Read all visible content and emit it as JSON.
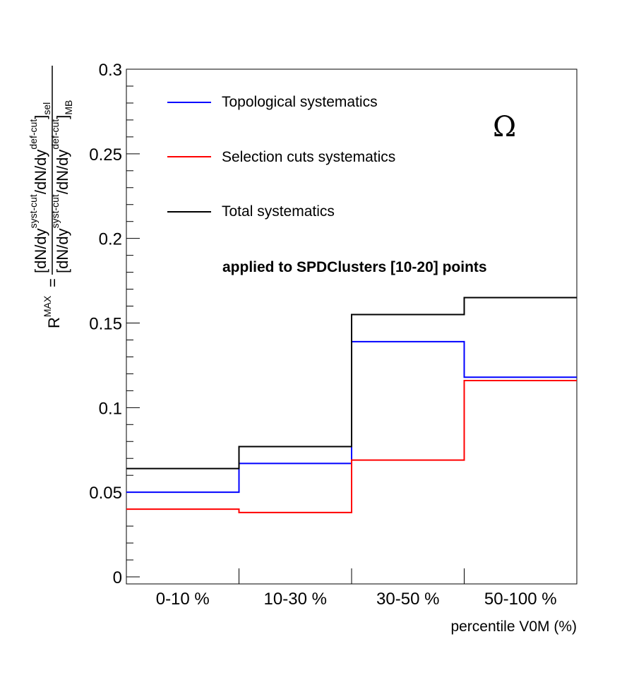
{
  "chart_data": {
    "type": "line",
    "step": true,
    "categories": [
      "0-10 %",
      "10-30 %",
      "30-50 %",
      "50-100 %"
    ],
    "series": [
      {
        "name": "Topological systematics",
        "color": "#0000ff",
        "values": [
          0.05,
          0.067,
          0.139,
          0.118
        ]
      },
      {
        "name": "Selection cuts systematics",
        "color": "#ff0000",
        "values": [
          0.04,
          0.038,
          0.069,
          0.116
        ]
      },
      {
        "name": "Total systematics",
        "color": "#000000",
        "values": [
          0.064,
          0.077,
          0.155,
          0.165
        ]
      }
    ],
    "title": "",
    "xlabel": "percentile V0M (%)",
    "ylabel": {
      "lhs": "R",
      "lhs_sup": "MAX",
      "eq": "=",
      "num_main": "[dN/dy",
      "num_sup1": "syst-cut",
      "num_mid": "/dN/dy",
      "num_sup2": "def-cut",
      "num_close": "]",
      "num_sub": "sel",
      "den_main": "[dN/dy",
      "den_sup1": "syst-cut",
      "den_mid": "/dN/dy",
      "den_sup2": "def-cut",
      "den_close": "]",
      "den_sub": "MB"
    },
    "ylim": [
      0,
      0.3
    ],
    "yticks": [
      {
        "value": 0,
        "label": "0"
      },
      {
        "value": 0.05,
        "label": "0.05"
      },
      {
        "value": 0.1,
        "label": "0.1"
      },
      {
        "value": 0.15,
        "label": "0.15"
      },
      {
        "value": 0.2,
        "label": "0.2"
      },
      {
        "value": 0.25,
        "label": "0.25"
      },
      {
        "value": 0.3,
        "label": "0.3"
      }
    ],
    "grid": false,
    "legend_position": "top-left",
    "annotations": {
      "particle": "Ω",
      "note": "applied to SPDClusters [10-20] points"
    }
  }
}
